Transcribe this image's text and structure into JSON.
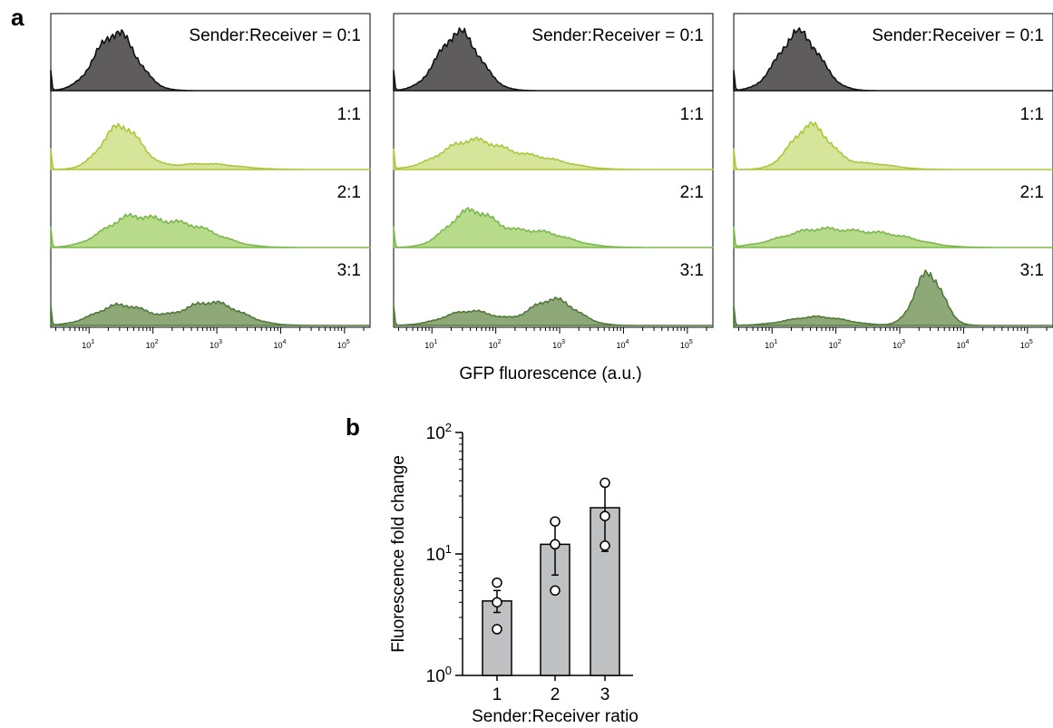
{
  "panels": {
    "a": "a",
    "b": "b"
  },
  "chart_data": [
    {
      "type": "area",
      "panel": "a",
      "description_axis": "log",
      "xlabel": "GFP fluorescence (a.u.)",
      "x_ticks": [
        "10",
        "10",
        "10",
        "10",
        "10"
      ],
      "x_tick_exponents": [
        "1",
        "2",
        "3",
        "4",
        "5"
      ],
      "x_range_log10": [
        0.4,
        5.4
      ],
      "colors": {
        "0:1": "#5f5c5e",
        "1:1": "#d7e59a",
        "2:1": "#b8dc8c",
        "3:1": "#8fa877"
      },
      "stroke_colors": {
        "0:1": "#111111",
        "1:1": "#a7c93a",
        "2:1": "#7bb84b",
        "3:1": "#4f7a3a"
      },
      "replicates": [
        {
          "rows": [
            {
              "label": "Sender:Receiver = 0:1",
              "key": "0:1",
              "peaks": [
                [
                  1.42,
                  0.32,
                  1.0
                ]
              ]
            },
            {
              "label": "1:1",
              "key": "1:1",
              "peaks": [
                [
                  1.5,
                  0.3,
                  0.75
                ],
                [
                  2.8,
                  0.5,
                  0.1
                ]
              ]
            },
            {
              "label": "2:1",
              "key": "2:1",
              "peaks": [
                [
                  1.6,
                  0.4,
                  0.45
                ],
                [
                  2.5,
                  0.5,
                  0.38
                ]
              ]
            },
            {
              "label": "3:1",
              "key": "3:1",
              "peaks": [
                [
                  1.5,
                  0.4,
                  0.35
                ],
                [
                  2.9,
                  0.45,
                  0.4
                ]
              ]
            }
          ]
        },
        {
          "rows": [
            {
              "label": "Sender:Receiver = 0:1",
              "key": "0:1",
              "peaks": [
                [
                  1.42,
                  0.32,
                  1.0
                ]
              ]
            },
            {
              "label": "1:1",
              "key": "1:1",
              "peaks": [
                [
                  1.6,
                  0.45,
                  0.48
                ],
                [
                  2.6,
                  0.5,
                  0.2
                ]
              ]
            },
            {
              "label": "2:1",
              "key": "2:1",
              "peaks": [
                [
                  1.6,
                  0.35,
                  0.6
                ],
                [
                  2.6,
                  0.5,
                  0.28
                ]
              ]
            },
            {
              "label": "3:1",
              "key": "3:1",
              "peaks": [
                [
                  1.6,
                  0.4,
                  0.25
                ],
                [
                  2.9,
                  0.35,
                  0.45
                ]
              ]
            }
          ]
        },
        {
          "rows": [
            {
              "label": "Sender:Receiver = 0:1",
              "key": "0:1",
              "peaks": [
                [
                  1.42,
                  0.32,
                  1.0
                ]
              ]
            },
            {
              "label": "1:1",
              "key": "1:1",
              "peaks": [
                [
                  1.6,
                  0.3,
                  0.75
                ],
                [
                  2.5,
                  0.4,
                  0.1
                ]
              ]
            },
            {
              "label": "2:1",
              "key": "2:1",
              "peaks": [
                [
                  1.7,
                  0.55,
                  0.3
                ],
                [
                  2.8,
                  0.5,
                  0.2
                ]
              ]
            },
            {
              "label": "3:1",
              "key": "3:1",
              "peaks": [
                [
                  1.7,
                  0.45,
                  0.15
                ],
                [
                  3.45,
                  0.22,
                  0.9
                ]
              ]
            }
          ]
        }
      ]
    },
    {
      "type": "bar",
      "panel": "b",
      "categories": [
        "1",
        "2",
        "3"
      ],
      "values": [
        4.1,
        12,
        24
      ],
      "error_low": [
        3.3,
        6.7,
        10.5
      ],
      "error_high": [
        5,
        17.5,
        38
      ],
      "points": [
        [
          5.8,
          4.0,
          2.4
        ],
        [
          18.5,
          12.0,
          5.0
        ],
        [
          38.5,
          20.5,
          11.7
        ]
      ],
      "ylabel": "Fluorescence fold change",
      "xlabel": "Sender:Receiver ratio",
      "yscale": "log",
      "y_ticks": [
        {
          "base": "10",
          "exp": "0",
          "value": 1
        },
        {
          "base": "10",
          "exp": "1",
          "value": 10
        },
        {
          "base": "10",
          "exp": "2",
          "value": 100
        }
      ],
      "bar_color": "#bfc0c2"
    }
  ]
}
